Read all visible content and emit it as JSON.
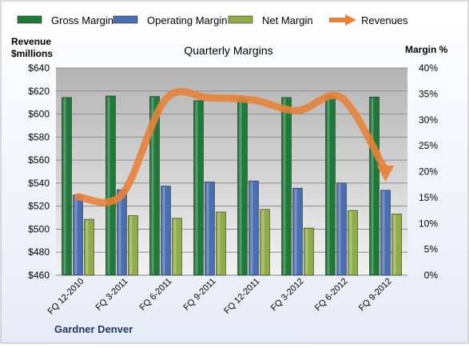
{
  "chart_data": {
    "type": "bar",
    "title": "Quarterly Margins",
    "left_axis_label_line1": "Revenue",
    "left_axis_label_line2": "$millions",
    "right_axis_label": "Margin %",
    "footer": "Gardner Denver",
    "categories": [
      "FQ 12-2010",
      "FQ 3-2011",
      "FQ 6-2011",
      "FQ 9-2011",
      "FQ 12-2011",
      "FQ 3-2012",
      "FQ 6-2012",
      "FQ 9-2012"
    ],
    "left_axis": {
      "min": 460,
      "max": 640,
      "step": 20,
      "tick_labels": [
        "$460",
        "$480",
        "$500",
        "$520",
        "$540",
        "$560",
        "$580",
        "$600",
        "$620",
        "$640"
      ]
    },
    "right_axis": {
      "min": 0,
      "max": 40,
      "step": 5,
      "tick_labels": [
        "0%",
        "5%",
        "10%",
        "15%",
        "20%",
        "25%",
        "30%",
        "35%",
        "40%"
      ]
    },
    "series": [
      {
        "name": "Gross Margin",
        "axis": "right",
        "kind": "bar",
        "color": "#1f7a3a",
        "values": [
          34.3,
          34.6,
          34.5,
          33.7,
          34.0,
          34.3,
          34.6,
          34.4
        ]
      },
      {
        "name": "Operating Margin",
        "axis": "right",
        "kind": "bar",
        "color": "#4a6fb0",
        "values": [
          15.5,
          16.5,
          17.2,
          18.0,
          18.2,
          16.8,
          17.8,
          16.4
        ]
      },
      {
        "name": "Net Margin",
        "axis": "right",
        "kind": "bar",
        "color": "#8fae4a",
        "values": [
          10.8,
          11.5,
          11.0,
          12.2,
          12.7,
          9.1,
          12.5,
          11.8
        ]
      },
      {
        "name": "Revenues",
        "axis": "left",
        "kind": "line",
        "color": "#e8823a",
        "values": [
          528,
          530,
          613,
          614,
          612,
          603,
          614,
          551
        ]
      }
    ],
    "legend_position": "top",
    "grid": true
  }
}
